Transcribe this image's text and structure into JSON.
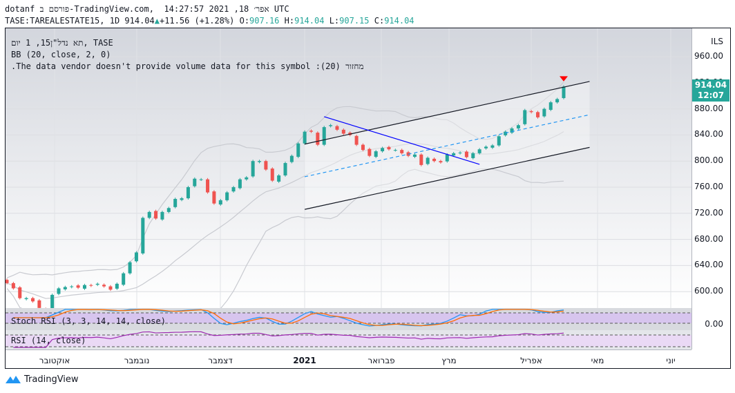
{
  "header": {
    "line1": "dotanf פורסם ב-TradingView.com,  אפר׳ 18, 2021 14:27:57 UTC",
    "symbol": "TASE:TAREALESTATE15, 1D 914.04",
    "change": "+11.56 (+1.28%)",
    "o_label": "O:",
    "o": "907.16",
    "h_label": "H:",
    "h": "914.04",
    "l_label": "L:",
    "l": "907.15",
    "c_label": "C:",
    "c": "914.04"
  },
  "legend": {
    "title": "תא נדל\"ן15, 1 יום, TASE",
    "bb": "BB (20, close, 2, 0)",
    "volume": ".The data vendor doesn't provide volume data for this symbol :(20) מחזור",
    "stoch": "Stoch RSI (3, 3, 14, 14, close)",
    "rsi": "RSI (14, close)"
  },
  "axis": {
    "currency": "ILS",
    "ticks": [
      "960.00",
      "920.00",
      "880.00",
      "840.00",
      "800.00",
      "760.00",
      "720.00",
      "680.00",
      "640.00",
      "600.00"
    ],
    "last_price": "914.04",
    "countdown": "12:07",
    "stoch_tick": "0.00"
  },
  "months": [
    "אוקטובר",
    "נובמבר",
    "דצמבר",
    "2021",
    "פברואר",
    "מרץ",
    "אפריל",
    "מאי",
    "יוני"
  ],
  "brand": "TradingView",
  "colors": {
    "up": "#26a69a",
    "down": "#ef5350",
    "bb": "#c8cad0",
    "channel": "#131722",
    "mid": "#2196f3",
    "trend": "#0000ff",
    "stoch_k": "#2196f3",
    "stoch_d": "#ff6d00",
    "rsi": "#9c27b0",
    "signal": "#ff0000"
  },
  "chart_data": {
    "type": "candlestick",
    "ylim": [
      570,
      980
    ],
    "y_ticks": [
      600,
      640,
      680,
      720,
      760,
      800,
      840,
      880,
      920,
      960
    ],
    "closes": [
      613,
      605,
      590,
      590,
      585,
      575,
      568,
      595,
      605,
      607,
      608,
      606,
      610,
      609,
      612,
      608,
      603,
      612,
      628,
      645,
      660,
      713,
      722,
      712,
      722,
      728,
      742,
      743,
      760,
      773,
      772,
      752,
      735,
      740,
      752,
      760,
      772,
      775,
      800,
      800,
      787,
      770,
      778,
      797,
      808,
      827,
      845,
      845,
      825,
      852,
      855,
      848,
      842,
      840,
      825,
      817,
      808,
      815,
      820,
      818,
      817,
      812,
      808,
      810,
      794,
      805,
      800,
      798,
      810,
      812,
      813,
      806,
      812,
      818,
      822,
      824,
      838,
      845,
      850,
      855,
      878,
      875,
      867,
      880,
      890,
      895,
      914.04
    ],
    "drawings": {
      "channel_upper": [
        [
          46,
          826
        ],
        [
          90,
          922
        ]
      ],
      "channel_lower": [
        [
          46,
          726
        ],
        [
          90,
          821
        ]
      ],
      "channel_mid": [
        [
          46,
          776
        ],
        [
          90,
          871
        ]
      ],
      "trendline": [
        [
          49,
          868
        ],
        [
          73,
          795
        ]
      ]
    },
    "indicators": {
      "bb": [
        20,
        2
      ],
      "rsi": 14,
      "stoch_rsi": [
        3,
        3,
        14,
        14
      ]
    }
  }
}
